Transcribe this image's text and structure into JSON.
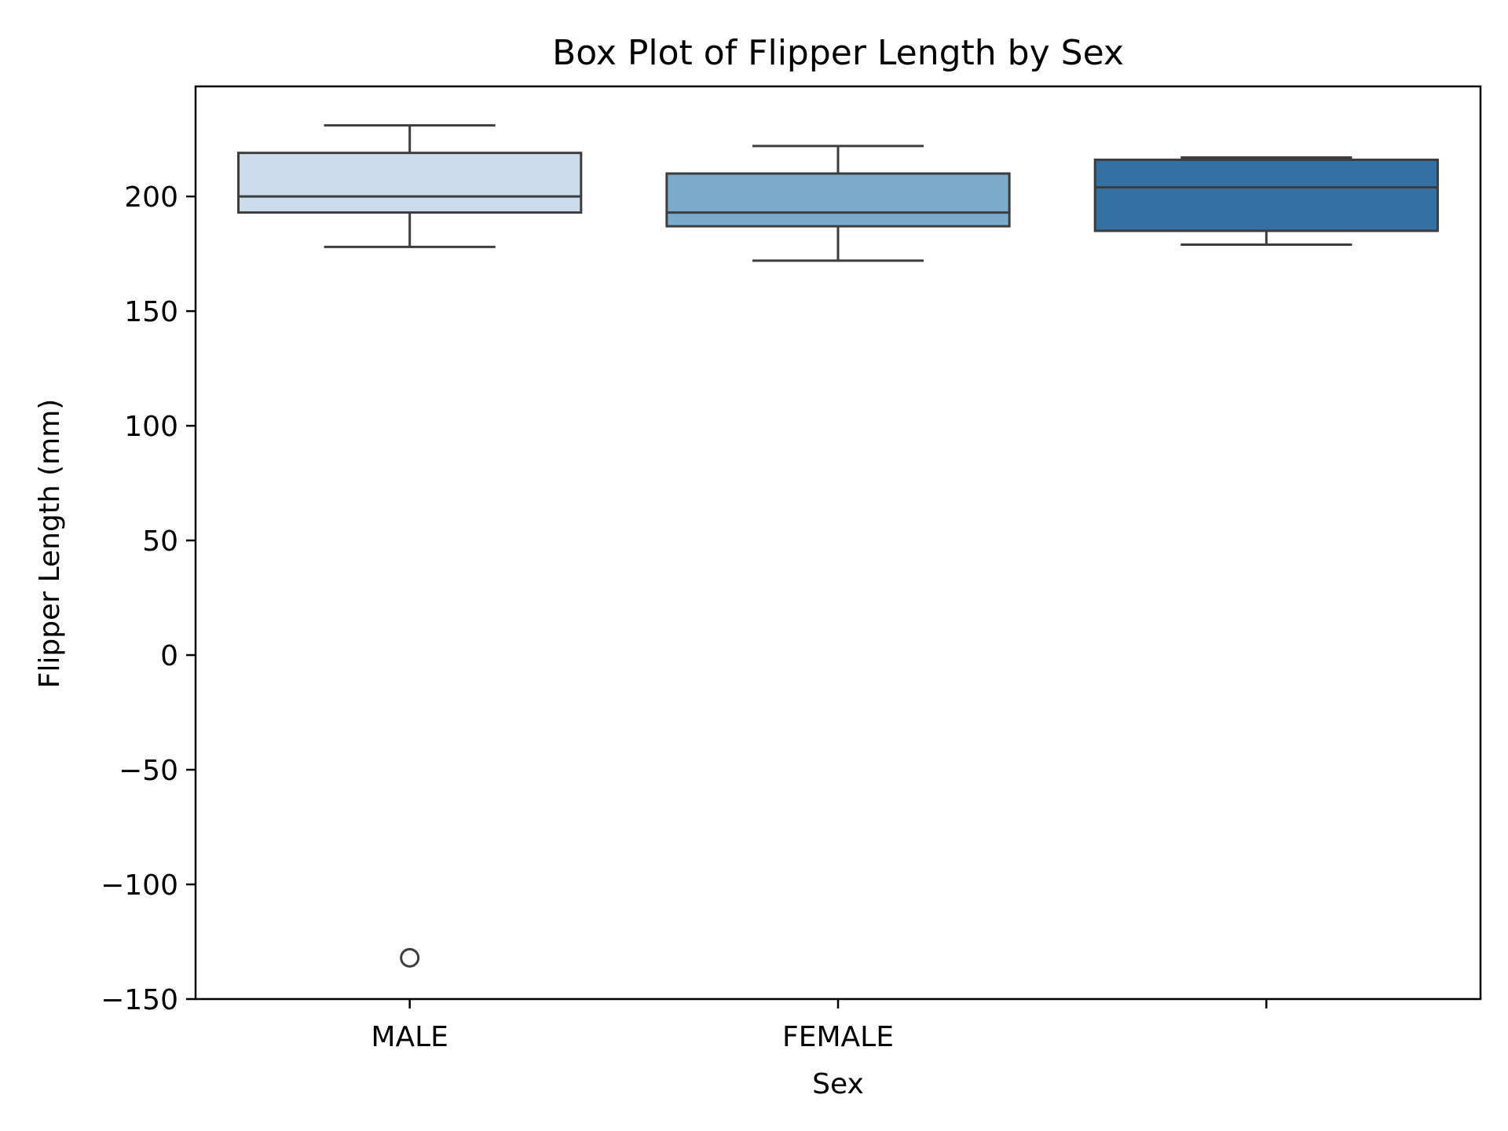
{
  "chart_data": {
    "type": "box",
    "title": "Box Plot of Flipper Length by Sex",
    "xlabel": "Sex",
    "ylabel": "Flipper Length (mm)",
    "ylim": [
      -150,
      248
    ],
    "yticks": [
      {
        "value": 200,
        "label": "200"
      },
      {
        "value": 150,
        "label": "150"
      },
      {
        "value": 100,
        "label": "100"
      },
      {
        "value": 50,
        "label": "50"
      },
      {
        "value": 0,
        "label": "0"
      },
      {
        "value": -50,
        "label": "−50"
      },
      {
        "value": -100,
        "label": "−100"
      },
      {
        "value": -150,
        "label": "−150"
      }
    ],
    "categories": [
      "MALE",
      "FEMALE",
      ""
    ],
    "boxes": [
      {
        "category": "MALE",
        "whisker_low": 178,
        "q1": 193,
        "median": 200,
        "q3": 219,
        "whisker_high": 231,
        "outliers": [
          -132
        ],
        "color": "#cddcec"
      },
      {
        "category": "FEMALE",
        "whisker_low": 172,
        "q1": 187,
        "median": 193,
        "q3": 210,
        "whisker_high": 222,
        "outliers": [],
        "color": "#7aabcc"
      },
      {
        "category": "",
        "whisker_low": 179,
        "q1": 185,
        "median": 204,
        "q3": 216,
        "whisker_high": 217,
        "outliers": [],
        "color": "#3470a3"
      }
    ],
    "line_color": "#3d3d3d",
    "grid": false,
    "legend": "none"
  }
}
